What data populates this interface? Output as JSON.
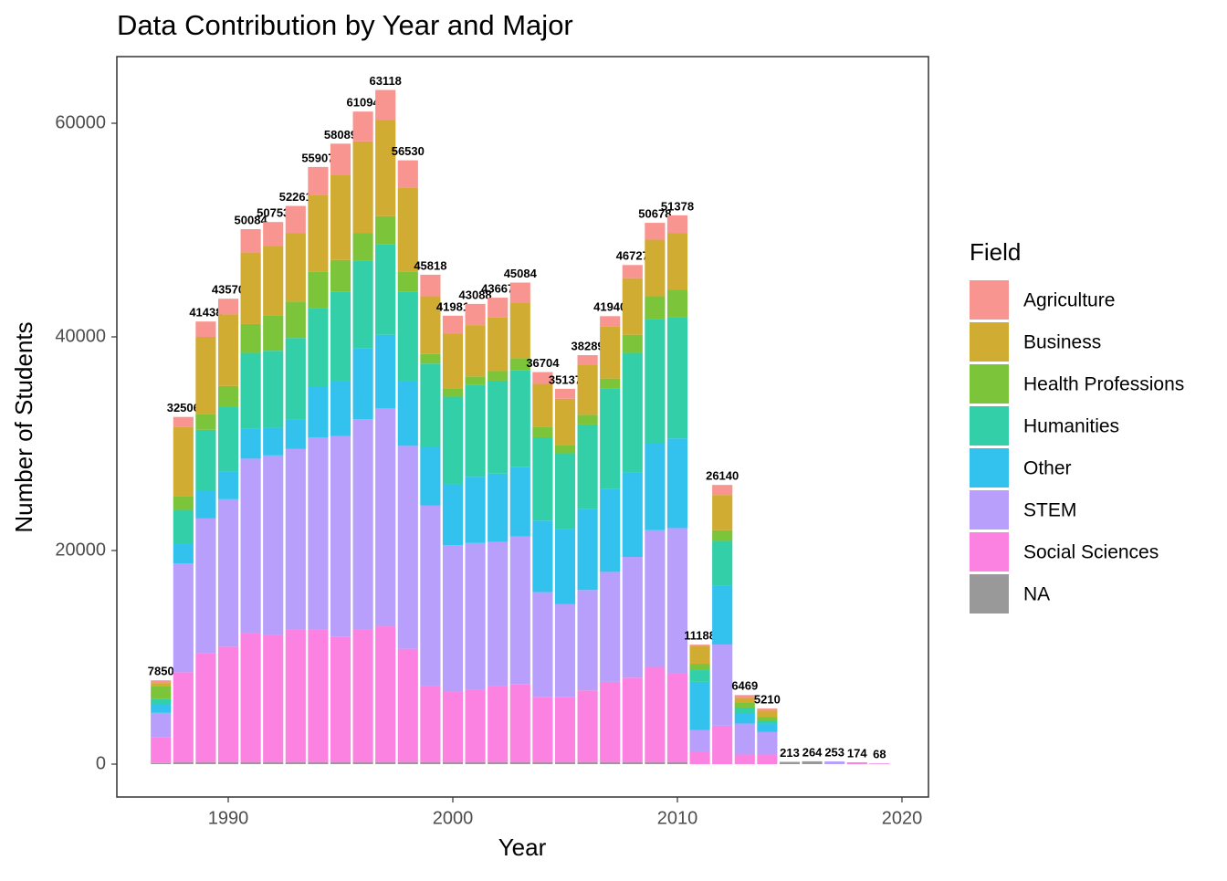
{
  "chart_data": {
    "type": "stacked-bar",
    "title": "Data Contribution by Year and Major",
    "x_label": "Year",
    "y_label": "Number of Students",
    "legend_title": "Field",
    "x": [
      1987,
      1988,
      1989,
      1990,
      1991,
      1992,
      1993,
      1994,
      1995,
      1996,
      1997,
      1998,
      1999,
      2000,
      2001,
      2002,
      2003,
      2004,
      2005,
      2006,
      2007,
      2008,
      2009,
      2010,
      2011,
      2012,
      2013,
      2014,
      2015,
      2016,
      2017,
      2018,
      2019
    ],
    "totals": [
      7850,
      32506,
      41438,
      43570,
      50084,
      50753,
      52261,
      55907,
      58089,
      61094,
      63118,
      56530,
      45818,
      41981,
      43088,
      43667,
      45084,
      36704,
      35137,
      38289,
      41940,
      46727,
      50678,
      51378,
      11188,
      26140,
      6469,
      5210,
      213,
      264,
      253,
      174,
      68
    ],
    "series": [
      {
        "name": "Agriculture",
        "color": "#f99590",
        "values": [
          250,
          906,
          1438,
          1470,
          2184,
          2253,
          2561,
          2607,
          2889,
          2794,
          2818,
          2530,
          2018,
          1681,
          1988,
          1867,
          1884,
          1104,
          937,
          889,
          940,
          1227,
          1578,
          1678,
          88,
          940,
          269,
          210,
          0,
          0,
          0,
          0,
          0
        ]
      },
      {
        "name": "Business",
        "color": "#d1ac32",
        "values": [
          300,
          6500,
          7200,
          6700,
          6700,
          6500,
          6400,
          7200,
          8000,
          8600,
          9000,
          7900,
          5400,
          5100,
          4800,
          5000,
          5200,
          4000,
          4300,
          4700,
          4900,
          5300,
          5300,
          5300,
          1700,
          3300,
          400,
          600,
          0,
          0,
          0,
          0,
          0
        ]
      },
      {
        "name": "Health Professions",
        "color": "#7cc43a",
        "values": [
          1200,
          1300,
          1500,
          1900,
          2700,
          3300,
          3400,
          3400,
          3000,
          2600,
          2600,
          1900,
          900,
          800,
          800,
          900,
          1100,
          1000,
          800,
          900,
          900,
          1700,
          2100,
          2600,
          600,
          1000,
          500,
          300,
          0,
          0,
          0,
          0,
          0
        ]
      },
      {
        "name": "Humanities",
        "color": "#32cfa8",
        "values": [
          500,
          3200,
          5700,
          6100,
          7100,
          7200,
          7600,
          7400,
          8300,
          8200,
          8500,
          8300,
          7800,
          8200,
          8600,
          8700,
          9100,
          7800,
          7100,
          7900,
          9400,
          11200,
          11700,
          11300,
          1100,
          4200,
          600,
          300,
          0,
          0,
          0,
          0,
          0
        ]
      },
      {
        "name": "Other",
        "color": "#33c1ed",
        "values": [
          800,
          1800,
          2600,
          2600,
          2800,
          2600,
          2800,
          4700,
          5200,
          6600,
          6900,
          6100,
          5500,
          5700,
          6200,
          6400,
          6500,
          6700,
          7000,
          7600,
          7800,
          7900,
          8100,
          8400,
          4500,
          5500,
          900,
          800,
          0,
          0,
          0,
          0,
          0
        ]
      },
      {
        "name": "STEM",
        "color": "#b79ffb",
        "values": [
          2300,
          10200,
          12600,
          13800,
          16300,
          16800,
          16900,
          18000,
          18800,
          19700,
          20400,
          19000,
          16900,
          13700,
          13700,
          13500,
          13800,
          9800,
          8700,
          9400,
          10300,
          11300,
          12800,
          13600,
          2000,
          7600,
          2900,
          2100,
          0,
          0,
          253,
          0,
          0
        ]
      },
      {
        "name": "Social Sciences",
        "color": "#fb82e0",
        "values": [
          2400,
          8400,
          10200,
          10800,
          12100,
          11900,
          12400,
          12400,
          11700,
          12400,
          12700,
          10600,
          7100,
          6600,
          6800,
          7100,
          7300,
          6100,
          6100,
          6700,
          7500,
          7900,
          8900,
          8300,
          1200,
          3600,
          900,
          900,
          0,
          0,
          0,
          174,
          68
        ]
      },
      {
        "name": "NA",
        "color": "#999999",
        "values": [
          100,
          200,
          200,
          200,
          200,
          200,
          200,
          200,
          200,
          200,
          200,
          200,
          200,
          200,
          200,
          200,
          200,
          200,
          200,
          200,
          200,
          200,
          200,
          200,
          0,
          0,
          0,
          0,
          213,
          264,
          0,
          0,
          0
        ]
      }
    ],
    "xlim": [
      1985.04,
      2021.18
    ],
    "ylim": [
      -3077,
      66239
    ],
    "xticks": [
      1990,
      2000,
      2010,
      2020
    ],
    "yticks": [
      0,
      20000,
      40000,
      60000
    ]
  }
}
